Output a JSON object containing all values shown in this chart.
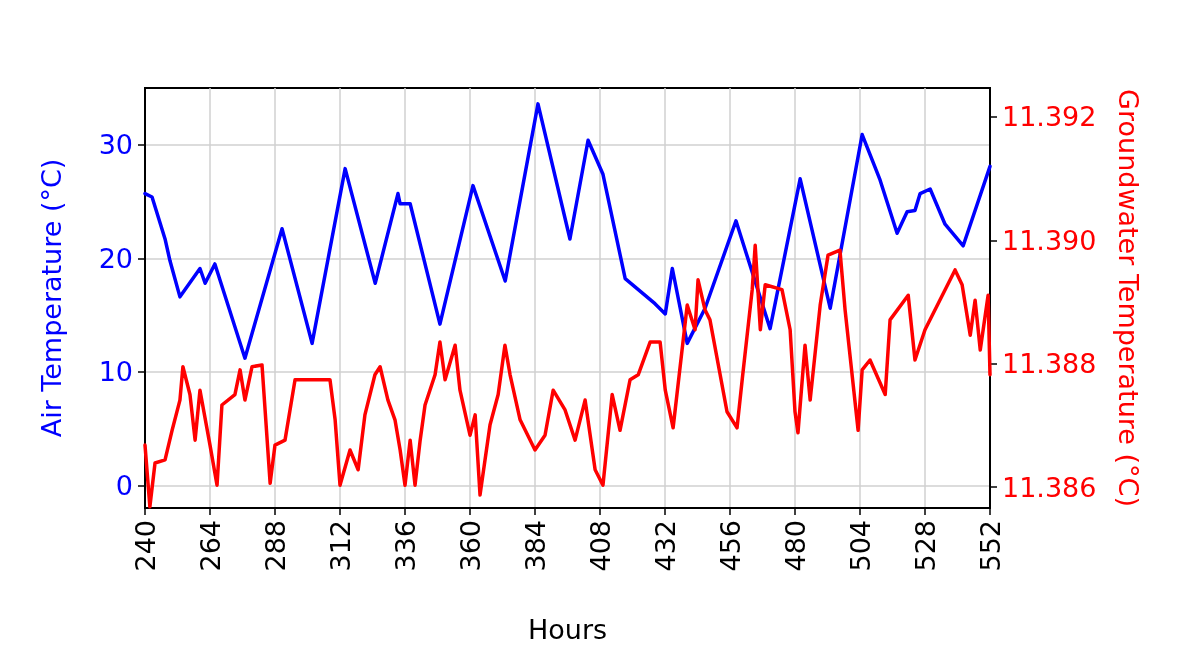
{
  "chart_data": {
    "type": "line",
    "xlabel": "Hours",
    "ylabel": "Air Temperature (°C)",
    "y2label": "Groundwater Temperature (°C)",
    "xlim": [
      240,
      552
    ],
    "xticks": [
      240,
      264,
      288,
      312,
      336,
      360,
      384,
      408,
      432,
      456,
      480,
      504,
      528,
      552
    ],
    "ylim": [
      -2,
      35
    ],
    "yticks": [
      0,
      10,
      20,
      30
    ],
    "y2lim": [
      11.38566,
      11.39247
    ],
    "y2ticks": [
      {
        "value": 11.386,
        "label": "11.386"
      },
      {
        "value": 11.388,
        "label": "11.388"
      },
      {
        "value": 11.39,
        "label": "11.390"
      },
      {
        "value": 11.392,
        "label": "11.392"
      }
    ],
    "grid": true,
    "marker": "none",
    "line_style": "solid",
    "series": [
      {
        "color": "#0000ff",
        "x": [
          240,
          242.6,
          247.4,
          249.2,
          252.9,
          260.3,
          262.2,
          265.8,
          276.9,
          290.6,
          301.7,
          313.9,
          325,
          333.4,
          334.2,
          337.9,
          348.9,
          361.1,
          373,
          385.1,
          396.9,
          403.6,
          409.1,
          417.3,
          428.3,
          432.1,
          434.7,
          440.2,
          446.8,
          458.2,
          470.8,
          481.9,
          493,
          504.8,
          511.4,
          517.7,
          521.4,
          524.3,
          526.2,
          529.9,
          535.4,
          542.1,
          552
        ],
        "values": [
          25.7,
          25.4,
          21.7,
          19.8,
          16.6,
          19.1,
          17.8,
          19.5,
          11.2,
          22.6,
          12.5,
          27.9,
          17.8,
          25.7,
          24.8,
          24.8,
          14.2,
          26.4,
          18.0,
          33.6,
          21.7,
          30.4,
          27.4,
          18.2,
          16.0,
          15.1,
          19.1,
          12.5,
          15.6,
          23.3,
          13.8,
          27.0,
          15.6,
          30.9,
          26.9,
          22.2,
          24.1,
          24.2,
          25.7,
          26.1,
          23.0,
          21.1,
          28.1
        ]
      },
      {
        "color": "#ff0000",
        "axis": "y2",
        "x": [
          240,
          241.8,
          243.7,
          247.4,
          250,
          252.9,
          254,
          256.6,
          258.5,
          260.3,
          264,
          266.6,
          268.4,
          273.2,
          275.1,
          276.9,
          279.5,
          283.2,
          286.2,
          288,
          291.7,
          295.4,
          302.8,
          308.3,
          310.2,
          312,
          315.7,
          318.7,
          321.2,
          324.9,
          326.8,
          329.7,
          332.3,
          334.2,
          336,
          337.9,
          339.7,
          341.6,
          343.4,
          347.1,
          348.9,
          350.8,
          354.5,
          356.3,
          360,
          361.9,
          363.7,
          367.4,
          370.4,
          372.9,
          374.8,
          378.5,
          384,
          387.7,
          390.7,
          395.1,
          398.8,
          402.5,
          406.2,
          409.1,
          412.5,
          415.4,
          419.1,
          422.1,
          426.5,
          430.2,
          432.1,
          435,
          440.2,
          443.1,
          444.2,
          446.8,
          448.6,
          454.9,
          458.6,
          460.5,
          464.2,
          465.3,
          467.2,
          469,
          475.2,
          478.2,
          480,
          481.1,
          483.7,
          485.6,
          489.3,
          492.2,
          496.6,
          498.5,
          503.3,
          504.8,
          507.7,
          513.3,
          515.1,
          521.8,
          524.3,
          528,
          539.1,
          541.7,
          544.7,
          546.5,
          548.4,
          551.3,
          552
        ],
        "values": [
          11.38668,
          11.38568,
          11.38639,
          11.38644,
          11.38692,
          11.38741,
          11.38795,
          11.3875,
          11.38676,
          11.38757,
          11.38668,
          11.38603,
          11.38733,
          11.3875,
          11.3879,
          11.38741,
          11.38795,
          11.38798,
          11.38606,
          11.38668,
          11.38676,
          11.38774,
          11.38774,
          11.38774,
          11.38709,
          11.38603,
          11.3866,
          11.38628,
          11.38717,
          11.38782,
          11.38795,
          11.38741,
          11.38709,
          11.3866,
          11.38603,
          11.38676,
          11.38603,
          11.38676,
          11.38733,
          11.38782,
          11.38835,
          11.38774,
          11.3883,
          11.38757,
          11.38684,
          11.38717,
          11.38587,
          11.38701,
          11.3875,
          11.3883,
          11.38782,
          11.38709,
          11.3866,
          11.38684,
          11.38757,
          11.38725,
          11.38676,
          11.38741,
          11.38628,
          11.38603,
          11.3875,
          11.38692,
          11.38774,
          11.38782,
          11.38835,
          11.38835,
          11.38757,
          11.38696,
          11.38895,
          11.38855,
          11.38936,
          11.38887,
          11.38871,
          11.38722,
          11.38696,
          11.38774,
          11.3892,
          11.38992,
          11.38855,
          11.38928,
          11.3892,
          11.38855,
          11.38722,
          11.38688,
          11.3883,
          11.38741,
          11.38895,
          11.38976,
          11.38984,
          11.38887,
          11.38692,
          11.3879,
          11.38806,
          11.3875,
          11.38871,
          11.38911,
          11.38806,
          11.38855,
          11.38952,
          11.38928,
          11.38846,
          11.38903,
          11.38822,
          11.38911,
          11.38782
        ]
      }
    ]
  }
}
